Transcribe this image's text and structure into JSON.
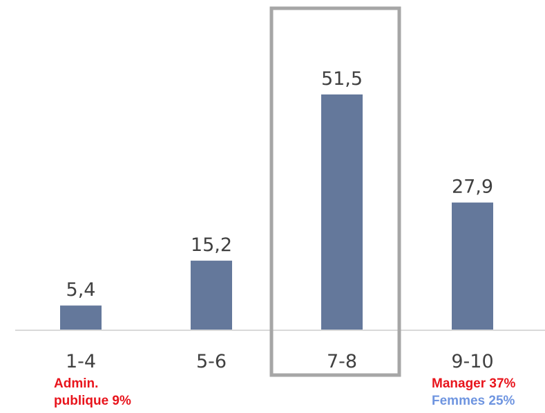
{
  "chart_data": {
    "type": "bar",
    "categories": [
      "1-4",
      "5-6",
      "7-8",
      "9-10"
    ],
    "values": [
      5.4,
      15.2,
      51.5,
      27.9
    ],
    "value_labels": [
      "5,4",
      "15,2",
      "51,5",
      "27,9"
    ],
    "title": "",
    "xlabel": "",
    "ylabel": "",
    "ylim": [
      0,
      60
    ],
    "grid": false,
    "highlighted_category": "7-8",
    "bar_color": "#64789b",
    "axis_color": "#d9d9d9",
    "highlight_frame_color": "#a6a6a6"
  },
  "notes": {
    "left": {
      "line1": "Admin.",
      "line2": "publique 9%",
      "color": "#e8141c"
    },
    "right": {
      "line1": "Manager 37%",
      "line1_color": "#e8141c",
      "line2": "Femmes 25%",
      "line2_color": "#6f95e0"
    }
  }
}
